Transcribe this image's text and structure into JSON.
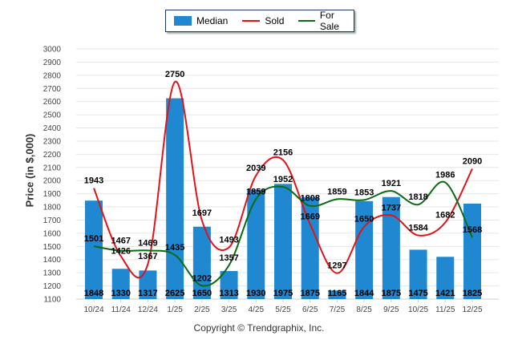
{
  "legend": {
    "items": [
      {
        "label": "Median",
        "color": "#1f88d0",
        "kind": "bar"
      },
      {
        "label": "Sold",
        "color": "#e3121a",
        "kind": "line"
      },
      {
        "label": "For Sale",
        "color": "#0b6b12",
        "kind": "line"
      }
    ]
  },
  "copyright": "Copyright © Trendgraphix, Inc.",
  "chart_data": {
    "type": "bar",
    "title": "",
    "xlabel": "",
    "ylabel": "Price (in $,000)",
    "ylim": [
      1100,
      3000
    ],
    "yticks": [
      1100,
      1200,
      1300,
      1400,
      1500,
      1600,
      1700,
      1800,
      1900,
      2000,
      2100,
      2200,
      2300,
      2400,
      2500,
      2600,
      2700,
      2800,
      2900,
      3000
    ],
    "grid": true,
    "legend_position": "top-center",
    "categories": [
      "10/24",
      "11/24",
      "12/24",
      "1/25",
      "2/25",
      "3/25",
      "4/25",
      "5/25",
      "6/25",
      "7/25",
      "8/25",
      "9/25",
      "10/25",
      "11/25",
      "12/25"
    ],
    "series": [
      {
        "name": "Median",
        "type": "bar",
        "color": "#1f88d0",
        "values": [
          1848,
          1330,
          1317,
          2625,
          1650,
          1313,
          1930,
          1975,
          1875,
          1165,
          1844,
          1875,
          1475,
          1421,
          1825
        ]
      },
      {
        "name": "Sold",
        "type": "line",
        "color": "#e3121a",
        "values": [
          1943,
          1426,
          1367,
          2750,
          1697,
          1493,
          2039,
          2156,
          1669,
          1297,
          1650,
          1737,
          1584,
          1682,
          2090
        ]
      },
      {
        "name": "For Sale",
        "type": "line",
        "color": "#0b6b12",
        "values": [
          1501,
          1467,
          1469,
          1435,
          1202,
          1357,
          1859,
          1952,
          1808,
          1859,
          1853,
          1921,
          1818,
          1986,
          1568
        ]
      }
    ]
  }
}
